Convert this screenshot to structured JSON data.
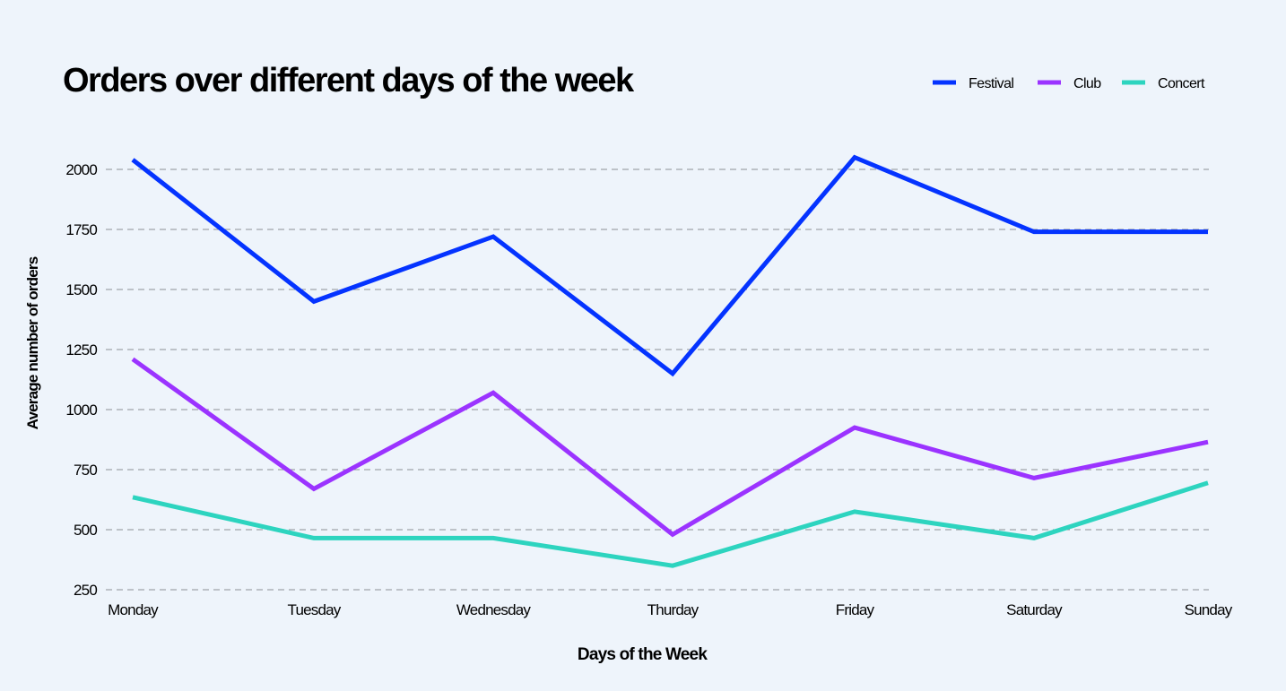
{
  "chart_data": {
    "type": "line",
    "title": "Orders over different days of the week",
    "xlabel": "Days of the Week",
    "ylabel": "Average number of orders",
    "categories": [
      "Monday",
      "Tuesday",
      "Wednesday",
      "Thurday",
      "Friday",
      "Saturday",
      "Sunday"
    ],
    "yticks": [
      250,
      500,
      750,
      1000,
      1250,
      1500,
      1750,
      2000
    ],
    "ylim": [
      250,
      2100
    ],
    "grid": true,
    "legend_position": "top-right",
    "series": [
      {
        "name": "Festival",
        "color": "#0433ff",
        "values": [
          2040,
          1450,
          1720,
          1150,
          2050,
          1740,
          1740
        ]
      },
      {
        "name": "Club",
        "color": "#9b33ff",
        "values": [
          1210,
          670,
          1070,
          480,
          925,
          715,
          865
        ]
      },
      {
        "name": "Concert",
        "color": "#2dd4bf",
        "values": [
          635,
          465,
          465,
          350,
          575,
          465,
          695
        ]
      }
    ]
  }
}
